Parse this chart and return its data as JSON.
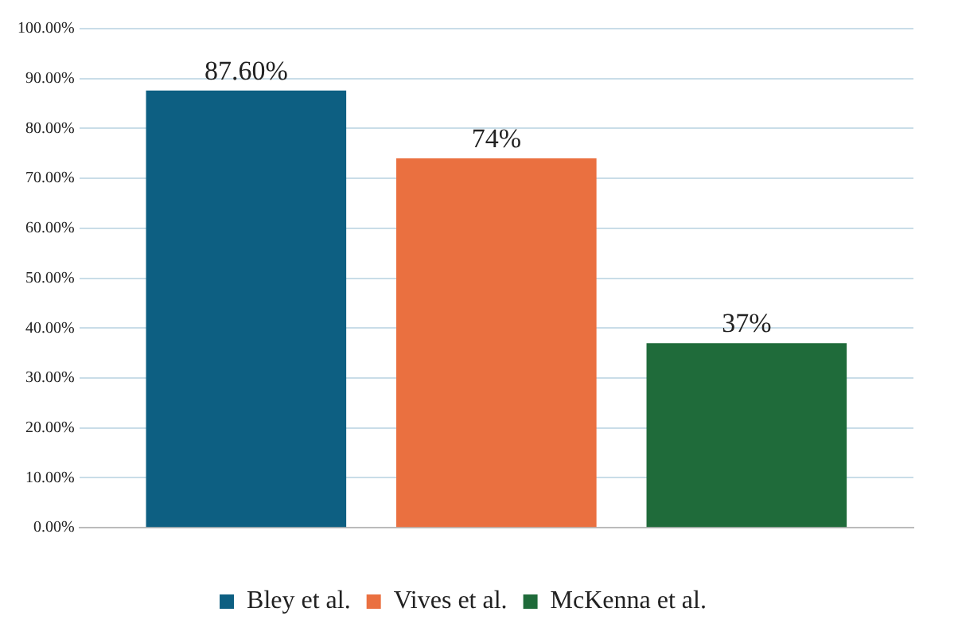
{
  "chart_data": {
    "type": "bar",
    "categories": [
      null
    ],
    "series": [
      {
        "name": "Bley et al.",
        "color": "#0d5f82",
        "values": [
          87.6
        ],
        "value_labels": [
          "87.60%"
        ]
      },
      {
        "name": "Vives et al.",
        "color": "#ea7040",
        "values": [
          74
        ],
        "value_labels": [
          "74%"
        ]
      },
      {
        "name": "McKenna et al.",
        "color": "#1f6b3a",
        "values": [
          37
        ],
        "value_labels": [
          "37%"
        ]
      }
    ],
    "ylim": [
      0,
      100
    ],
    "yticks": [
      {
        "value": 0,
        "label": "0.00%"
      },
      {
        "value": 10,
        "label": "10.00%"
      },
      {
        "value": 20,
        "label": "20.00%"
      },
      {
        "value": 30,
        "label": "30.00%"
      },
      {
        "value": 40,
        "label": "40.00%"
      },
      {
        "value": 50,
        "label": "50.00%"
      },
      {
        "value": 60,
        "label": "60.00%"
      },
      {
        "value": 70,
        "label": "70.00%"
      },
      {
        "value": 80,
        "label": "80.00%"
      },
      {
        "value": 90,
        "label": "90.00%"
      },
      {
        "value": 100,
        "label": "100.00%"
      }
    ],
    "grid": "y",
    "legend": "bottom"
  }
}
